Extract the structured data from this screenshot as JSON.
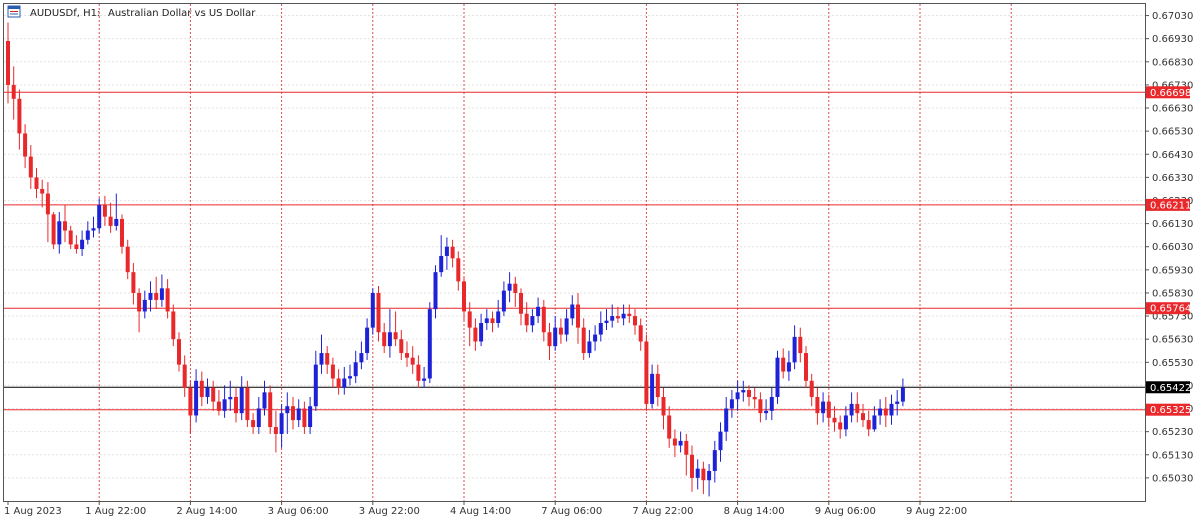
{
  "header": {
    "symbol_label": "AUDUSDf, H1:",
    "description": "Australian Dollar vs US Dollar",
    "icon": "instrument-icon"
  },
  "colors": {
    "bull": "#1e22d6",
    "bear": "#e8282b",
    "grid": "#e3e3e3",
    "vgrid": "#e24b4b",
    "level": "#e8282b",
    "current": "#000000"
  },
  "chart_data": {
    "type": "candlestick",
    "y_range": [
      0.6493,
      0.6708
    ],
    "y_ticks": [
      "0.67030",
      "0.66930",
      "0.66830",
      "0.66730",
      "0.66630",
      "0.66530",
      "0.66430",
      "0.66330",
      "0.66230",
      "0.66130",
      "0.66030",
      "0.65930",
      "0.65830",
      "0.65730",
      "0.65630",
      "0.65530",
      "0.65430",
      "0.65330",
      "0.65230",
      "0.65130",
      "0.65030"
    ],
    "x_labels": [
      "1 Aug 2023",
      "1 Aug 22:00",
      "2 Aug 14:00",
      "3 Aug 06:00",
      "3 Aug 22:00",
      "4 Aug 14:00",
      "7 Aug 06:00",
      "7 Aug 22:00",
      "8 Aug 14:00",
      "9 Aug 06:00",
      "9 Aug 22:00"
    ],
    "bars_per_label": 16,
    "levels": [
      {
        "label": "0.66698",
        "value": 0.66698,
        "kind": "resistance"
      },
      {
        "label": "0.66211",
        "value": 0.66211,
        "kind": "resistance"
      },
      {
        "label": "0.65764",
        "value": 0.65764,
        "kind": "resistance"
      },
      {
        "label": "0.65422",
        "value": 0.65422,
        "kind": "current"
      },
      {
        "label": "0.65325",
        "value": 0.65325,
        "kind": "support"
      }
    ],
    "candles": [
      [
        0.6692,
        0.6673,
        0.67,
        0.6665
      ],
      [
        0.6673,
        0.6667,
        0.6681,
        0.6658
      ],
      [
        0.6667,
        0.6652,
        0.6671,
        0.6645
      ],
      [
        0.6652,
        0.6642,
        0.6656,
        0.6637
      ],
      [
        0.6642,
        0.6633,
        0.6647,
        0.6628
      ],
      [
        0.6633,
        0.6628,
        0.6637,
        0.6624
      ],
      [
        0.6628,
        0.6626,
        0.6632,
        0.662
      ],
      [
        0.6626,
        0.6617,
        0.6631,
        0.6605
      ],
      [
        0.6617,
        0.6604,
        0.6618,
        0.6602
      ],
      [
        0.6604,
        0.6614,
        0.6618,
        0.66
      ],
      [
        0.6614,
        0.661,
        0.6621,
        0.6605
      ],
      [
        0.661,
        0.6604,
        0.6612,
        0.6602
      ],
      [
        0.6604,
        0.6602,
        0.6608,
        0.66
      ],
      [
        0.6602,
        0.6606,
        0.661,
        0.6599
      ],
      [
        0.6606,
        0.661,
        0.6614,
        0.6604
      ],
      [
        0.661,
        0.6611,
        0.6616,
        0.6607
      ],
      [
        0.6611,
        0.6621,
        0.6624,
        0.6609
      ],
      [
        0.6621,
        0.6616,
        0.6625,
        0.6612
      ],
      [
        0.6616,
        0.6612,
        0.6622,
        0.6609
      ],
      [
        0.6612,
        0.6615,
        0.6626,
        0.661
      ],
      [
        0.6615,
        0.6603,
        0.6617,
        0.66
      ],
      [
        0.6603,
        0.6592,
        0.6606,
        0.6589
      ],
      [
        0.6592,
        0.6583,
        0.6596,
        0.6578
      ],
      [
        0.6583,
        0.6575,
        0.6585,
        0.6566
      ],
      [
        0.6575,
        0.658,
        0.6584,
        0.6572
      ],
      [
        0.658,
        0.6583,
        0.6588,
        0.6575
      ],
      [
        0.6583,
        0.658,
        0.659,
        0.6576
      ],
      [
        0.658,
        0.6585,
        0.6591,
        0.6577
      ],
      [
        0.6585,
        0.6575,
        0.6589,
        0.6572
      ],
      [
        0.6575,
        0.6563,
        0.6578,
        0.656
      ],
      [
        0.6563,
        0.6552,
        0.6566,
        0.6549
      ],
      [
        0.6552,
        0.6542,
        0.6556,
        0.6538
      ],
      [
        0.6542,
        0.653,
        0.6545,
        0.6522
      ],
      [
        0.653,
        0.6545,
        0.655,
        0.6527
      ],
      [
        0.6545,
        0.6538,
        0.6549,
        0.6534
      ],
      [
        0.6538,
        0.6542,
        0.6546,
        0.6535
      ],
      [
        0.6542,
        0.6536,
        0.6545,
        0.6532
      ],
      [
        0.6536,
        0.6532,
        0.6541,
        0.653
      ],
      [
        0.6532,
        0.6537,
        0.6543,
        0.6529
      ],
      [
        0.6537,
        0.6538,
        0.6545,
        0.6532
      ],
      [
        0.6538,
        0.6531,
        0.6542,
        0.6527
      ],
      [
        0.6531,
        0.6542,
        0.6547,
        0.6528
      ],
      [
        0.6542,
        0.6528,
        0.6545,
        0.6525
      ],
      [
        0.6528,
        0.6525,
        0.6531,
        0.6522
      ],
      [
        0.6525,
        0.6533,
        0.6538,
        0.6522
      ],
      [
        0.6533,
        0.654,
        0.6545,
        0.653
      ],
      [
        0.654,
        0.6525,
        0.6543,
        0.6522
      ],
      [
        0.6525,
        0.6522,
        0.6532,
        0.6514
      ],
      [
        0.6522,
        0.6531,
        0.6535,
        0.6516
      ],
      [
        0.6531,
        0.6534,
        0.654,
        0.6522
      ],
      [
        0.6534,
        0.6528,
        0.6538,
        0.6524
      ],
      [
        0.6528,
        0.6533,
        0.6537,
        0.6525
      ],
      [
        0.6533,
        0.6525,
        0.6536,
        0.6522
      ],
      [
        0.6525,
        0.6534,
        0.6538,
        0.6522
      ],
      [
        0.6534,
        0.6552,
        0.6558,
        0.6532
      ],
      [
        0.6552,
        0.6557,
        0.6565,
        0.6548
      ],
      [
        0.6557,
        0.6552,
        0.656,
        0.6548
      ],
      [
        0.6552,
        0.6546,
        0.6555,
        0.6542
      ],
      [
        0.6546,
        0.6542,
        0.655,
        0.6539
      ],
      [
        0.6542,
        0.6546,
        0.6551,
        0.6539
      ],
      [
        0.6546,
        0.6547,
        0.6552,
        0.6543
      ],
      [
        0.6547,
        0.6553,
        0.6558,
        0.6544
      ],
      [
        0.6553,
        0.6557,
        0.6562,
        0.655
      ],
      [
        0.6557,
        0.6568,
        0.6572,
        0.6554
      ],
      [
        0.6568,
        0.6583,
        0.6585,
        0.6565
      ],
      [
        0.6583,
        0.6566,
        0.6586,
        0.6562
      ],
      [
        0.6566,
        0.656,
        0.657,
        0.6557
      ],
      [
        0.656,
        0.6566,
        0.6576,
        0.6555
      ],
      [
        0.6566,
        0.6563,
        0.6575,
        0.656
      ],
      [
        0.6563,
        0.6557,
        0.6567,
        0.6554
      ],
      [
        0.6557,
        0.6555,
        0.6562,
        0.6551
      ],
      [
        0.6555,
        0.6552,
        0.656,
        0.6548
      ],
      [
        0.6552,
        0.6545,
        0.6556,
        0.6542
      ],
      [
        0.6545,
        0.6546,
        0.6551,
        0.6542
      ],
      [
        0.6546,
        0.6576,
        0.6579,
        0.6544
      ],
      [
        0.6576,
        0.6592,
        0.6595,
        0.6572
      ],
      [
        0.6592,
        0.6599,
        0.6608,
        0.659
      ],
      [
        0.6599,
        0.6603,
        0.6607,
        0.6593
      ],
      [
        0.6603,
        0.6598,
        0.6606,
        0.6594
      ],
      [
        0.6598,
        0.6588,
        0.6601,
        0.6584
      ],
      [
        0.6588,
        0.6575,
        0.659,
        0.6571
      ],
      [
        0.6575,
        0.6568,
        0.6579,
        0.656
      ],
      [
        0.6568,
        0.6562,
        0.6572,
        0.6558
      ],
      [
        0.6562,
        0.657,
        0.6574,
        0.656
      ],
      [
        0.657,
        0.6572,
        0.6576,
        0.6567
      ],
      [
        0.6572,
        0.657,
        0.6575,
        0.6566
      ],
      [
        0.657,
        0.6575,
        0.658,
        0.6568
      ],
      [
        0.6575,
        0.6584,
        0.6588,
        0.6573
      ],
      [
        0.6584,
        0.6587,
        0.6592,
        0.6579
      ],
      [
        0.6587,
        0.6583,
        0.659,
        0.6577
      ],
      [
        0.6583,
        0.6574,
        0.6585,
        0.6569
      ],
      [
        0.6574,
        0.6569,
        0.6579,
        0.6566
      ],
      [
        0.6569,
        0.6573,
        0.6576,
        0.6566
      ],
      [
        0.6573,
        0.6577,
        0.6581,
        0.657
      ],
      [
        0.6577,
        0.6566,
        0.658,
        0.6562
      ],
      [
        0.6566,
        0.656,
        0.657,
        0.6554
      ],
      [
        0.656,
        0.6568,
        0.6573,
        0.6558
      ],
      [
        0.6568,
        0.6565,
        0.6572,
        0.6561
      ],
      [
        0.6565,
        0.6572,
        0.6576,
        0.6562
      ],
      [
        0.6572,
        0.6578,
        0.6582,
        0.6569
      ],
      [
        0.6578,
        0.6568,
        0.6583,
        0.6561
      ],
      [
        0.6568,
        0.6557,
        0.6572,
        0.6554
      ],
      [
        0.6557,
        0.6562,
        0.6567,
        0.6555
      ],
      [
        0.6562,
        0.6565,
        0.6569,
        0.6558
      ],
      [
        0.6565,
        0.657,
        0.6575,
        0.6562
      ],
      [
        0.657,
        0.6571,
        0.6576,
        0.6567
      ],
      [
        0.6571,
        0.6573,
        0.6578,
        0.6568
      ],
      [
        0.6573,
        0.6572,
        0.6577,
        0.657
      ],
      [
        0.6572,
        0.6574,
        0.6578,
        0.6569
      ],
      [
        0.6574,
        0.6573,
        0.6578,
        0.657
      ],
      [
        0.6573,
        0.6569,
        0.6576,
        0.6565
      ],
      [
        0.6569,
        0.6562,
        0.6572,
        0.6558
      ],
      [
        0.6562,
        0.6535,
        0.6565,
        0.6532
      ],
      [
        0.6535,
        0.6548,
        0.6552,
        0.6533
      ],
      [
        0.6548,
        0.6538,
        0.6552,
        0.6534
      ],
      [
        0.6538,
        0.653,
        0.6542,
        0.6524
      ],
      [
        0.653,
        0.652,
        0.6534,
        0.6516
      ],
      [
        0.652,
        0.6517,
        0.6524,
        0.6512
      ],
      [
        0.6517,
        0.6519,
        0.6523,
        0.6514
      ],
      [
        0.6519,
        0.6513,
        0.6522,
        0.6504
      ],
      [
        0.6513,
        0.6503,
        0.6517,
        0.6497
      ],
      [
        0.6503,
        0.6507,
        0.6511,
        0.6498
      ],
      [
        0.6507,
        0.6502,
        0.651,
        0.6496
      ],
      [
        0.6502,
        0.6506,
        0.6509,
        0.6495
      ],
      [
        0.6506,
        0.6515,
        0.6519,
        0.6501
      ],
      [
        0.6515,
        0.6523,
        0.6527,
        0.651
      ],
      [
        0.6523,
        0.6533,
        0.6538,
        0.6519
      ],
      [
        0.6533,
        0.6537,
        0.6541,
        0.6529
      ],
      [
        0.6537,
        0.654,
        0.6545,
        0.6532
      ],
      [
        0.654,
        0.6541,
        0.6545,
        0.6536
      ],
      [
        0.6541,
        0.6538,
        0.6543,
        0.6534
      ],
      [
        0.6538,
        0.6537,
        0.6542,
        0.6533
      ],
      [
        0.6537,
        0.6531,
        0.654,
        0.6527
      ],
      [
        0.6531,
        0.6532,
        0.6537,
        0.6528
      ],
      [
        0.6532,
        0.6538,
        0.6542,
        0.6528
      ],
      [
        0.6538,
        0.6555,
        0.6558,
        0.6535
      ],
      [
        0.6555,
        0.6549,
        0.6559,
        0.6546
      ],
      [
        0.6549,
        0.6553,
        0.6558,
        0.6545
      ],
      [
        0.6553,
        0.6564,
        0.6569,
        0.655
      ],
      [
        0.6564,
        0.6557,
        0.6568,
        0.6553
      ],
      [
        0.6557,
        0.6545,
        0.656,
        0.6542
      ],
      [
        0.6545,
        0.6538,
        0.6548,
        0.6534
      ],
      [
        0.6538,
        0.6531,
        0.6542,
        0.6526
      ],
      [
        0.6531,
        0.6536,
        0.654,
        0.6527
      ],
      [
        0.6536,
        0.6529,
        0.6539,
        0.6525
      ],
      [
        0.6529,
        0.6527,
        0.6534,
        0.6523
      ],
      [
        0.6527,
        0.6524,
        0.653,
        0.652
      ],
      [
        0.6524,
        0.653,
        0.6534,
        0.6521
      ],
      [
        0.653,
        0.6535,
        0.654,
        0.6527
      ],
      [
        0.6535,
        0.6531,
        0.654,
        0.6527
      ],
      [
        0.6531,
        0.6528,
        0.6535,
        0.6525
      ],
      [
        0.6528,
        0.6524,
        0.6532,
        0.6521
      ],
      [
        0.6524,
        0.653,
        0.6534,
        0.6523
      ],
      [
        0.653,
        0.6533,
        0.6537,
        0.6526
      ],
      [
        0.6533,
        0.653,
        0.6538,
        0.6525
      ],
      [
        0.653,
        0.6535,
        0.6539,
        0.6526
      ],
      [
        0.6535,
        0.6536,
        0.6541,
        0.653
      ],
      [
        0.6536,
        0.6542,
        0.6546,
        0.6534
      ]
    ]
  }
}
